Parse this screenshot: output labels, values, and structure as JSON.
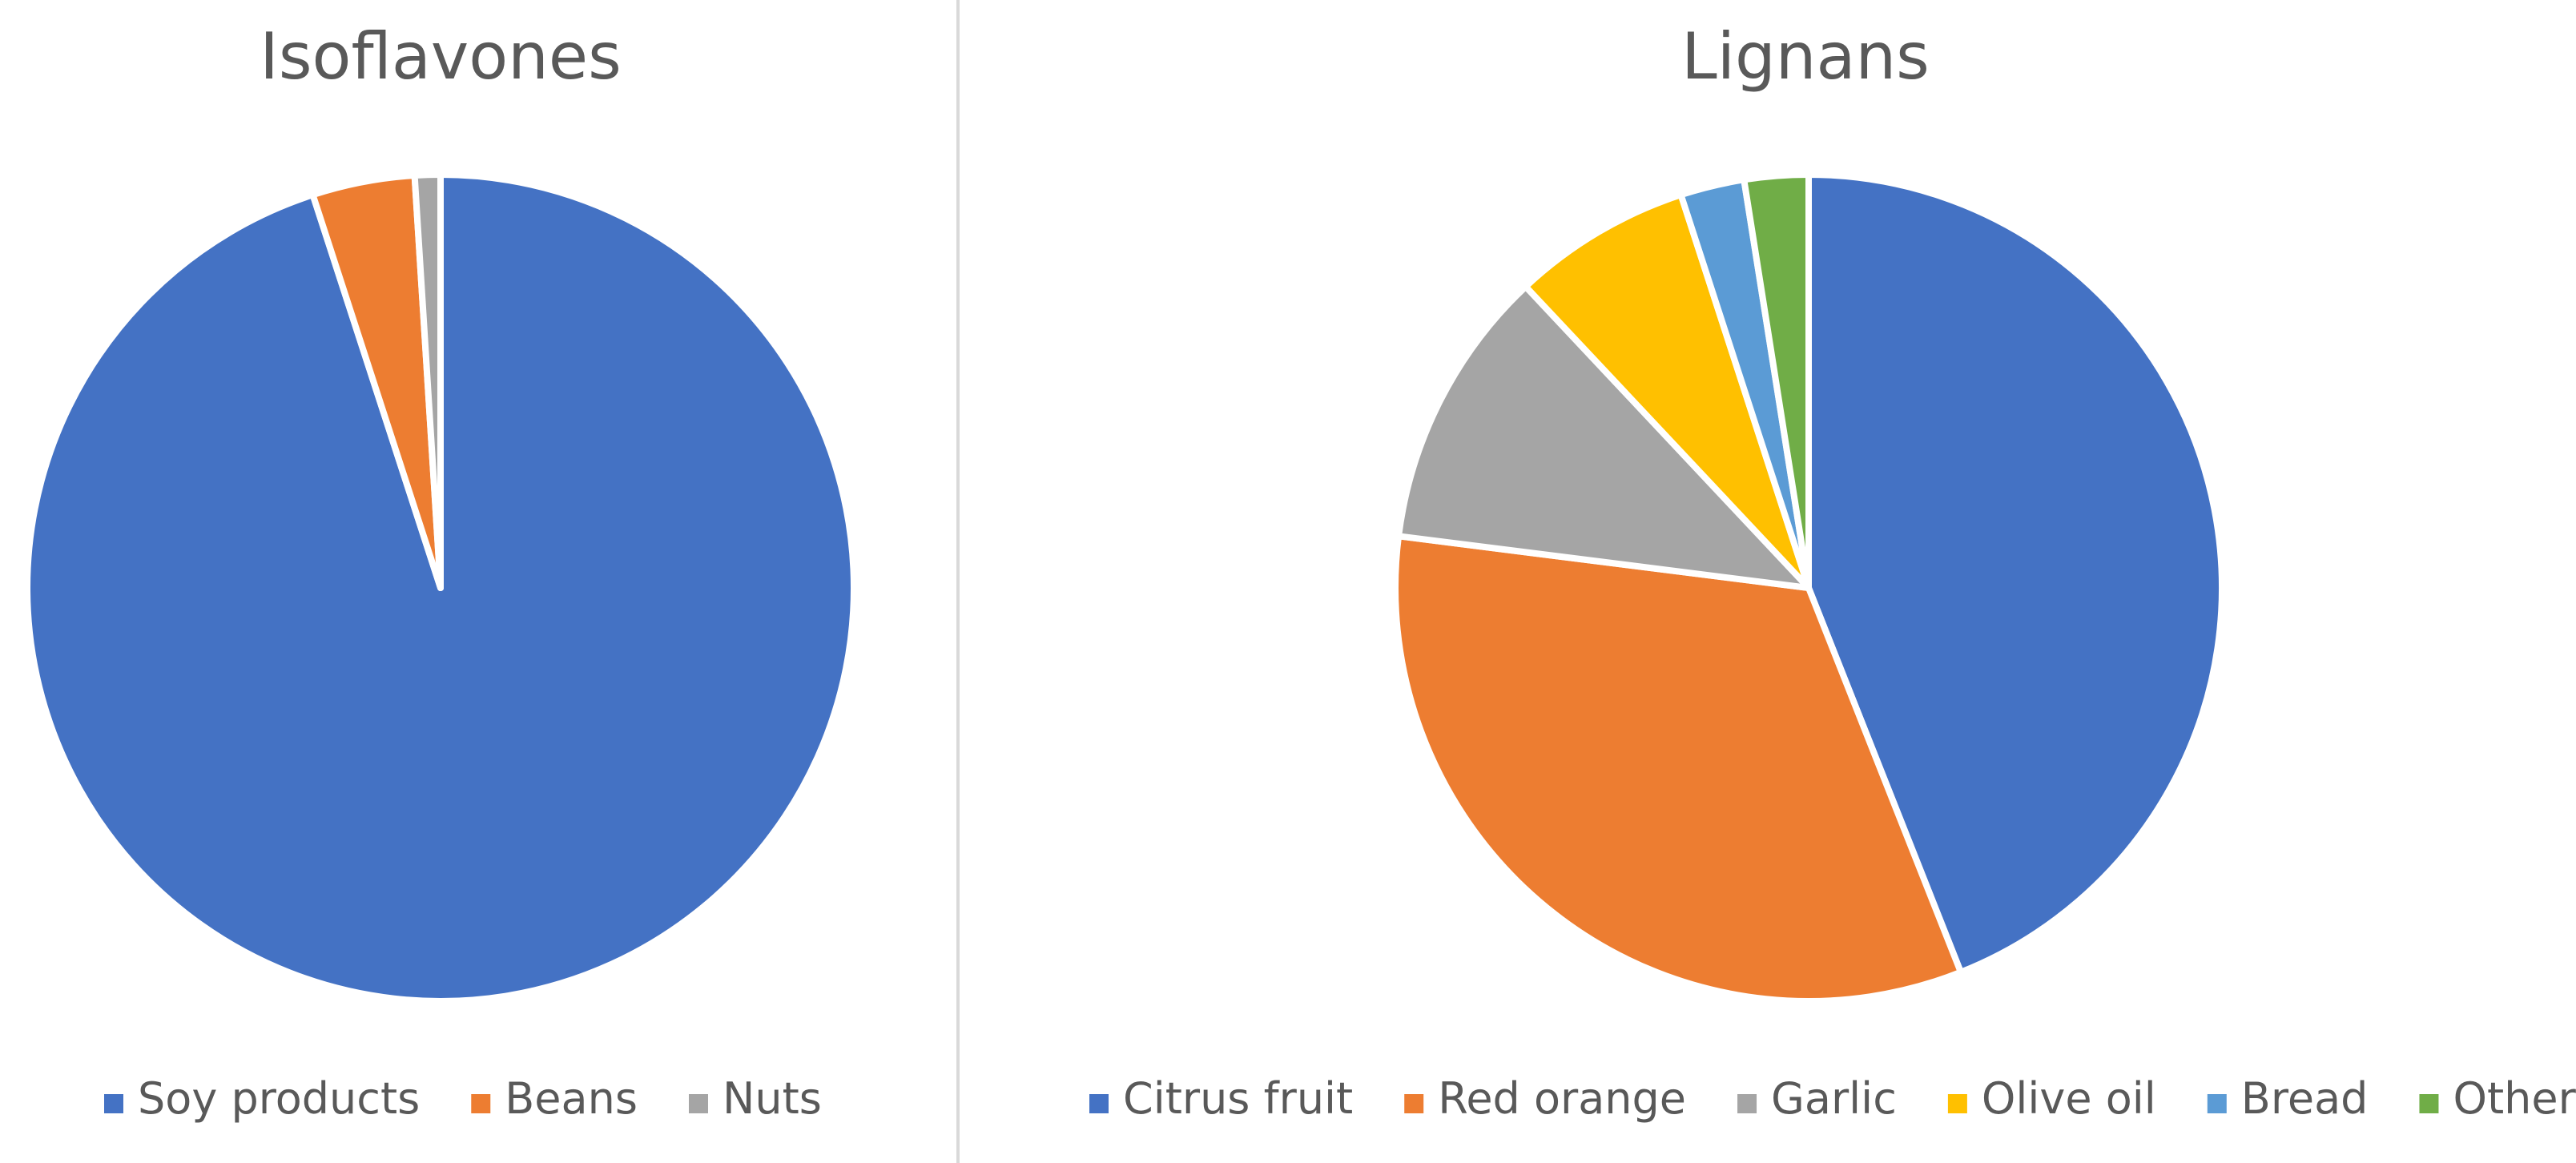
{
  "chart_data": [
    {
      "type": "pie",
      "title": "Isoflavones",
      "legend_position": "bottom",
      "categories": [
        "Soy products",
        "Beans",
        "Nuts"
      ],
      "values": [
        95,
        4,
        1
      ],
      "colors": [
        "#4472C4",
        "#ED7D31",
        "#A5A5A5"
      ]
    },
    {
      "type": "pie",
      "title": "Lignans",
      "legend_position": "bottom",
      "categories": [
        "Citrus fruit",
        "Red orange",
        "Garlic",
        "Olive oil",
        "Bread",
        "Others"
      ],
      "values": [
        44,
        33,
        11,
        7,
        2.5,
        2.5
      ],
      "colors": [
        "#4472C4",
        "#ED7D31",
        "#A5A5A5",
        "#FFC000",
        "#5B9BD5",
        "#70AD47"
      ]
    }
  ]
}
